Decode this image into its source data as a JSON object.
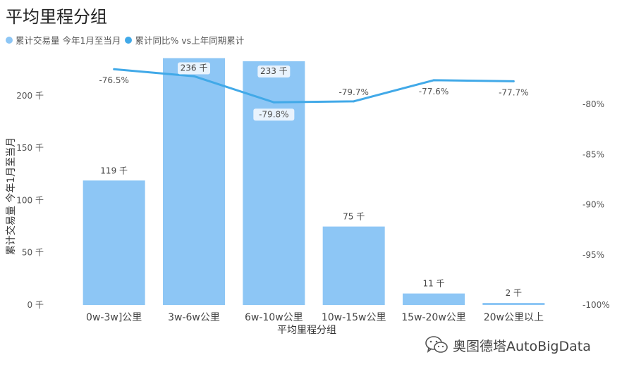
{
  "title": "平均里程分组",
  "legend": [
    {
      "name": "累计交易量 今年1月至当月",
      "color": "#8DC6F5"
    },
    {
      "name": "累计同比% vs上年同期累计",
      "color": "#41A9E8"
    }
  ],
  "watermark": {
    "text": "奥图德塔AutoBigData",
    "icon": "wechat-icon"
  },
  "chart_data": {
    "type": "bar",
    "categories": [
      "0w-3w]公里",
      "3w-6w公里",
      "6w-10w公里",
      "10w-15w公里",
      "15w-20w公里",
      "20w公里以上"
    ],
    "xlabel": "平均里程分组",
    "ylabel": "累计交易量 今年1月至当月",
    "ylim": [
      0,
      235
    ],
    "y_ticks": [
      {
        "value": 0,
        "label": "0 千"
      },
      {
        "value": 50,
        "label": "50 千"
      },
      {
        "value": 100,
        "label": "100 千"
      },
      {
        "value": 150,
        "label": "150 千"
      },
      {
        "value": 200,
        "label": "200 千"
      }
    ],
    "y2lim": [
      -100,
      -75.5
    ],
    "y2_ticks": [
      {
        "value": -80,
        "label": "-80%"
      },
      {
        "value": -85,
        "label": "-85%"
      },
      {
        "value": -90,
        "label": "-90%"
      },
      {
        "value": -95,
        "label": "-95%"
      },
      {
        "value": -100,
        "label": "-100%"
      }
    ],
    "series": [
      {
        "name": "累计交易量 今年1月至当月",
        "type": "bar",
        "color": "#8DC6F5",
        "values": [
          119,
          236,
          233,
          75,
          11,
          2
        ],
        "labels": [
          "119 千",
          "236 千",
          "233 千",
          "75 千",
          "11 千",
          "2 千"
        ]
      },
      {
        "name": "累计同比% vs上年同期累计",
        "type": "line",
        "axis": "right",
        "color": "#41A9E8",
        "values": [
          -76.5,
          -77.2,
          -79.8,
          -79.7,
          -77.6,
          -77.7
        ],
        "labels": [
          "-76.5%",
          "",
          "-79.8%",
          "-79.7%",
          "-77.6%",
          "-77.7%"
        ]
      }
    ],
    "grid": false,
    "legend_position": "top-left"
  }
}
